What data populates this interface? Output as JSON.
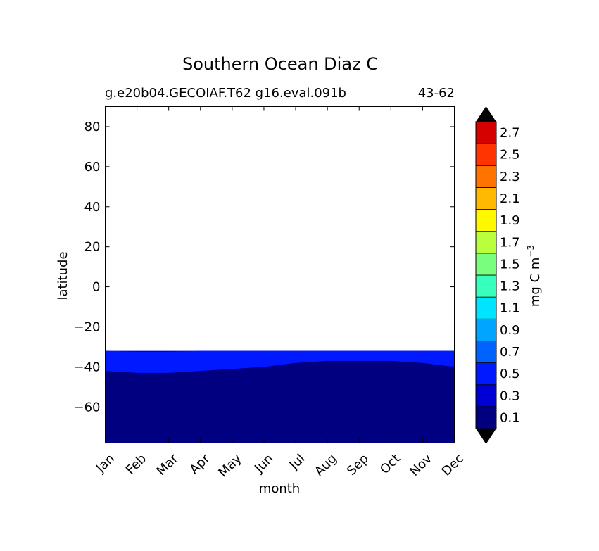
{
  "chart_data": {
    "type": "heatmap",
    "title": "Southern Ocean Diaz C",
    "subtitle_left": "g.e20b04.GECOIAF.T62 g16.eval.091b",
    "subtitle_right": "43-62",
    "xlabel": "month",
    "ylabel": "latitude",
    "x_categories": [
      "Jan",
      "Feb",
      "Mar",
      "Apr",
      "May",
      "Jun",
      "Jul",
      "Aug",
      "Sep",
      "Oct",
      "Nov",
      "Dec"
    ],
    "ylim": [
      -78,
      90
    ],
    "yticks": [
      80,
      60,
      40,
      20,
      0,
      -20,
      -40,
      -60
    ],
    "ytick_labels": [
      "80",
      "60",
      "40",
      "20",
      "0",
      "−20",
      "−40",
      "−60"
    ],
    "data_top_latitude": -32,
    "colorbar": {
      "label": "mg C m",
      "label_superscript": "−3",
      "levels": [
        0.0,
        0.2,
        0.4,
        0.6,
        0.8,
        1.0,
        1.2,
        1.4,
        1.6,
        1.8,
        2.0,
        2.2,
        2.4,
        2.6,
        2.8
      ],
      "tick_labels": [
        "0.1",
        "0.3",
        "0.5",
        "0.7",
        "0.9",
        "1.1",
        "1.3",
        "1.5",
        "1.7",
        "1.9",
        "2.1",
        "2.3",
        "2.5",
        "2.7"
      ],
      "colors": [
        "#000080",
        "#0000d5",
        "#0019ff",
        "#0063ff",
        "#00a5ff",
        "#00e5ff",
        "#39ffbd",
        "#79ff7d",
        "#b9ff3d",
        "#fff800",
        "#ffb900",
        "#ff7300",
        "#ff3400",
        "#d50000"
      ],
      "under_color": "#000000",
      "over_color": "#000000"
    },
    "contour_bands": [
      {
        "level": "0.0-0.2",
        "color": "#000080",
        "lat_top_by_month": [
          -42,
          -43,
          -43,
          -42,
          -41,
          -40,
          -38,
          -37,
          -37,
          -37,
          -38,
          -40
        ]
      },
      {
        "level": "0.2-0.4",
        "color": "#0000d5",
        "lat_top_by_month": [
          -32,
          -32,
          -32,
          -32,
          -32,
          -32,
          -32,
          -32,
          -32,
          -32,
          -32,
          -32
        ]
      },
      {
        "level": "0.4-0.6",
        "color": "#0019ff",
        "lat_top_by_month": [
          -32,
          -32.5,
          -32.5,
          -32,
          -32,
          -32,
          -32,
          -32,
          -32,
          -32,
          -32,
          -32
        ]
      }
    ]
  }
}
